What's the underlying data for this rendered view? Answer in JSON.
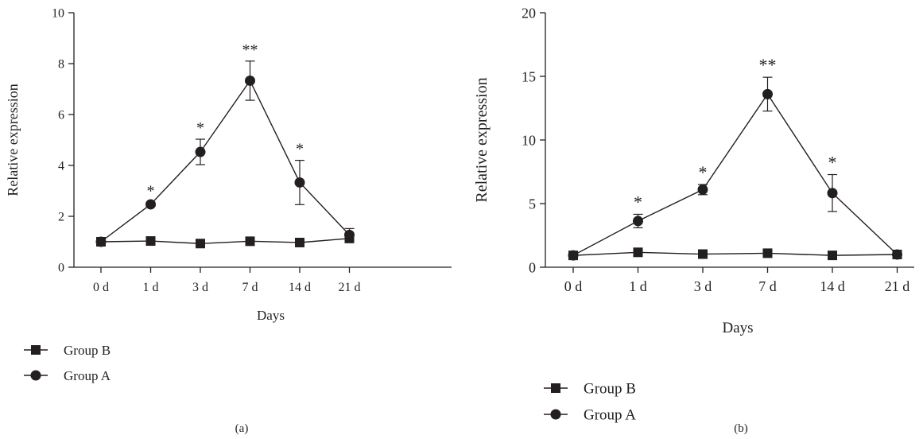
{
  "chart_data": [
    {
      "type": "line",
      "panel_label": "(a)",
      "xlabel": "Days",
      "ylabel": "Relative expression",
      "categories": [
        "0 d",
        "1 d",
        "3 d",
        "7 d",
        "14 d",
        "21 d"
      ],
      "ylim": [
        0,
        10
      ],
      "yticks": [
        0,
        2,
        4,
        6,
        8,
        10
      ],
      "grid": false,
      "legend_position": "bottom-left",
      "series": [
        {
          "name": "Group B",
          "marker": "square",
          "values": [
            1.0,
            1.03,
            0.93,
            1.02,
            0.97,
            1.13
          ],
          "errors": [
            0.05,
            0.05,
            0.05,
            0.05,
            0.05,
            0.12
          ]
        },
        {
          "name": "Group A",
          "marker": "circle",
          "values": [
            1.0,
            2.47,
            4.53,
            7.33,
            3.33,
            1.27
          ],
          "errors": [
            0.05,
            0.08,
            0.5,
            0.77,
            0.87,
            0.25
          ]
        }
      ],
      "annotations": [
        "",
        "*",
        "*",
        "**",
        "*",
        ""
      ]
    },
    {
      "type": "line",
      "panel_label": "(b)",
      "xlabel": "Days",
      "ylabel": "Relative expression",
      "categories": [
        "0 d",
        "1 d",
        "3 d",
        "7 d",
        "14 d",
        "21 d"
      ],
      "ylim": [
        0,
        20
      ],
      "yticks": [
        0,
        5,
        10,
        15,
        20
      ],
      "grid": false,
      "legend_position": "bottom-left",
      "series": [
        {
          "name": "Group B",
          "marker": "square",
          "values": [
            0.93,
            1.17,
            1.03,
            1.1,
            0.93,
            1.0
          ],
          "errors": [
            0.1,
            0.1,
            0.1,
            0.1,
            0.1,
            0.1
          ]
        },
        {
          "name": "Group A",
          "marker": "circle",
          "values": [
            0.93,
            3.63,
            6.1,
            13.6,
            5.83,
            1.0
          ],
          "errors": [
            0.1,
            0.53,
            0.4,
            1.33,
            1.45,
            0.1
          ]
        }
      ],
      "annotations": [
        "",
        "*",
        "*",
        "**",
        "*",
        ""
      ]
    }
  ]
}
